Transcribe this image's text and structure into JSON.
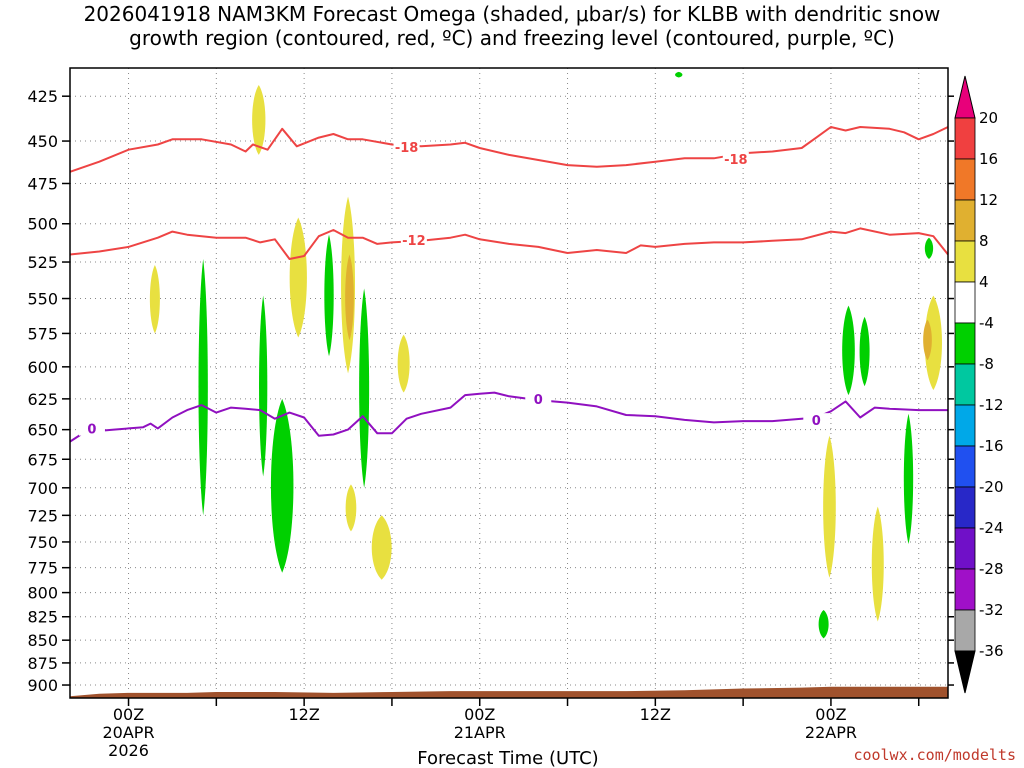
{
  "title": {
    "line1": "2026041918 NAM3KM Forecast Omega (shaded, μbar/s) for KLBB with dendritic snow",
    "line2": "growth region (contoured, red, ºC) and freezing level (contoured, purple, ºC)"
  },
  "credit": "coolwx.com/modelts",
  "chart_data": {
    "type": "heatmap",
    "xlabel": "Forecast Time (UTC)",
    "ylabel": "",
    "x_unit": "forecast hour",
    "xlim": [
      -4,
      56
    ],
    "y_unit": "mb",
    "ylim": [
      915,
      410
    ],
    "y_scale": "log",
    "grid": true,
    "x_ticks": [
      {
        "hour": 0,
        "lines": [
          "00Z",
          "20APR",
          "2026"
        ]
      },
      {
        "hour": 12,
        "lines": [
          "12Z"
        ]
      },
      {
        "hour": 24,
        "lines": [
          "00Z",
          "21APR"
        ]
      },
      {
        "hour": 36,
        "lines": [
          "12Z"
        ]
      },
      {
        "hour": 48,
        "lines": [
          "00Z",
          "22APR"
        ]
      }
    ],
    "y_ticks": [
      425,
      450,
      475,
      500,
      525,
      550,
      575,
      600,
      625,
      650,
      675,
      700,
      725,
      750,
      775,
      800,
      825,
      850,
      875,
      900
    ],
    "colorbar": {
      "label_values": [
        20,
        16,
        12,
        8,
        4,
        -4,
        -8,
        -12,
        -16,
        -20,
        -24,
        -28,
        -32,
        -36
      ],
      "colors": [
        "#e8007a",
        "#f04040",
        "#f07828",
        "#e0b030",
        "#e8e040",
        "#ffffff",
        "#00d000",
        "#00c8a0",
        "#00a8e8",
        "#2050f0",
        "#2828c8",
        "#7010c8",
        "#a010c8",
        "#a8a8a8",
        "#000000"
      ]
    },
    "contours": [
      {
        "value": "-18",
        "color": "#ee4444",
        "points": [
          [
            -4,
            468
          ],
          [
            -2,
            462
          ],
          [
            0,
            455
          ],
          [
            2,
            452
          ],
          [
            3,
            449
          ],
          [
            5,
            449
          ],
          [
            7,
            452
          ],
          [
            8,
            456
          ],
          [
            8.5,
            452
          ],
          [
            9.5,
            455
          ],
          [
            10.5,
            443
          ],
          [
            11.5,
            453
          ],
          [
            13,
            448
          ],
          [
            14,
            446
          ],
          [
            15,
            449
          ],
          [
            16,
            449
          ],
          [
            18,
            452
          ],
          [
            20,
            453
          ],
          [
            22,
            452
          ],
          [
            23,
            451
          ],
          [
            24,
            454
          ],
          [
            26,
            458
          ],
          [
            28,
            461
          ],
          [
            30,
            464
          ],
          [
            32,
            465
          ],
          [
            34,
            464
          ],
          [
            36,
            462
          ],
          [
            38,
            460
          ],
          [
            40,
            460
          ],
          [
            42,
            457
          ],
          [
            44,
            456
          ],
          [
            46,
            454
          ],
          [
            47,
            448
          ],
          [
            48,
            442
          ],
          [
            49,
            444
          ],
          [
            50,
            442
          ],
          [
            52,
            443
          ],
          [
            53,
            445
          ],
          [
            54,
            449
          ],
          [
            55,
            446
          ],
          [
            56,
            442
          ]
        ],
        "labels": [
          [
            19,
            454
          ],
          [
            41.5,
            461
          ]
        ]
      },
      {
        "value": "-12",
        "color": "#ee4444",
        "points": [
          [
            -4,
            520
          ],
          [
            -2,
            518
          ],
          [
            0,
            515
          ],
          [
            2,
            509
          ],
          [
            3,
            505
          ],
          [
            4,
            507
          ],
          [
            6,
            509
          ],
          [
            8,
            509
          ],
          [
            9,
            512
          ],
          [
            10,
            510
          ],
          [
            11,
            523
          ],
          [
            12,
            521
          ],
          [
            13,
            508
          ],
          [
            14,
            504
          ],
          [
            15,
            509
          ],
          [
            16,
            509
          ],
          [
            17,
            513
          ],
          [
            18,
            512
          ],
          [
            20,
            511
          ],
          [
            22,
            509
          ],
          [
            23,
            507
          ],
          [
            24,
            510
          ],
          [
            26,
            513
          ],
          [
            28,
            515
          ],
          [
            30,
            519
          ],
          [
            32,
            517
          ],
          [
            34,
            519
          ],
          [
            35,
            514
          ],
          [
            36,
            515
          ],
          [
            38,
            513
          ],
          [
            40,
            512
          ],
          [
            42,
            512
          ],
          [
            44,
            511
          ],
          [
            46,
            510
          ],
          [
            48,
            505
          ],
          [
            49,
            506
          ],
          [
            50,
            503
          ],
          [
            52,
            507
          ],
          [
            54,
            506
          ],
          [
            55,
            508
          ],
          [
            56,
            520
          ]
        ],
        "labels": [
          [
            19.5,
            511
          ]
        ]
      },
      {
        "value": "0",
        "color": "#9010c0",
        "points": [
          [
            -4,
            660
          ],
          [
            -3,
            652
          ],
          [
            -1,
            650
          ],
          [
            1,
            648
          ],
          [
            1.5,
            645
          ],
          [
            2,
            649
          ],
          [
            3,
            640
          ],
          [
            4,
            634
          ],
          [
            5,
            630
          ],
          [
            6,
            636
          ],
          [
            7,
            632
          ],
          [
            8,
            633
          ],
          [
            9,
            634
          ],
          [
            10,
            641
          ],
          [
            11,
            636
          ],
          [
            12,
            640
          ],
          [
            13,
            655
          ],
          [
            14,
            654
          ],
          [
            15,
            650
          ],
          [
            16,
            639
          ],
          [
            17,
            653
          ],
          [
            18,
            653
          ],
          [
            19,
            641
          ],
          [
            20,
            637
          ],
          [
            22,
            632
          ],
          [
            23,
            622
          ],
          [
            24,
            621
          ],
          [
            25,
            620
          ],
          [
            26,
            623
          ],
          [
            28,
            626
          ],
          [
            30,
            628
          ],
          [
            32,
            631
          ],
          [
            34,
            638
          ],
          [
            36,
            639
          ],
          [
            38,
            642
          ],
          [
            40,
            644
          ],
          [
            42,
            643
          ],
          [
            44,
            643
          ],
          [
            46,
            641
          ],
          [
            47,
            640
          ],
          [
            48,
            635
          ],
          [
            49,
            627
          ],
          [
            50,
            640
          ],
          [
            51,
            632
          ],
          [
            52,
            633
          ],
          [
            54,
            634
          ],
          [
            56,
            634
          ]
        ],
        "labels": [
          [
            -2.5,
            650
          ],
          [
            28,
            626
          ],
          [
            47,
            643
          ]
        ]
      }
    ],
    "shaded_regions": [
      {
        "level": 4,
        "color": "#e8e040",
        "x": 8.9,
        "w": 0.6,
        "y_top": 419,
        "y_bot": 458
      },
      {
        "level": 4,
        "color": "#e8e040",
        "x": 1.8,
        "w": 0.35,
        "y_top": 527,
        "y_bot": 575
      },
      {
        "level": 4,
        "color": "#e8e040",
        "x": 11.6,
        "w": 0.9,
        "y_top": 496,
        "y_bot": 578
      },
      {
        "level": 4,
        "color": "#e8e040",
        "x": 15,
        "w": 0.65,
        "y_top": 483,
        "y_bot": 605
      },
      {
        "level": 8,
        "color": "#e0b030",
        "x": 15.1,
        "w": 0.25,
        "y_top": 520,
        "y_bot": 580
      },
      {
        "level": 4,
        "color": "#e8e040",
        "x": 18.8,
        "w": 0.5,
        "y_top": 576,
        "y_bot": 620
      },
      {
        "level": 4,
        "color": "#e8e040",
        "x": 15.2,
        "w": 0.4,
        "y_top": 697,
        "y_bot": 740
      },
      {
        "level": 4,
        "color": "#e8e040",
        "x": 17.3,
        "w": 1.1,
        "y_top": 725,
        "y_bot": 787
      },
      {
        "level": 4,
        "color": "#e8e040",
        "x": 55,
        "w": 0.9,
        "y_top": 548,
        "y_bot": 618
      },
      {
        "level": 8,
        "color": "#e0b030",
        "x": 54.6,
        "w": 0.25,
        "y_top": 565,
        "y_bot": 595
      },
      {
        "level": 4,
        "color": "#e8e040",
        "x": 47.9,
        "w": 0.55,
        "y_top": 655,
        "y_bot": 785
      },
      {
        "level": 4,
        "color": "#e8e040",
        "x": 51.2,
        "w": 0.5,
        "y_top": 717,
        "y_bot": 830
      },
      {
        "level": -4,
        "color": "#00d000",
        "x": 5.1,
        "w": 0.3,
        "y_top": 523,
        "y_bot": 725
      },
      {
        "level": -4,
        "color": "#00d000",
        "x": 9.2,
        "w": 0.22,
        "y_top": 548,
        "y_bot": 690
      },
      {
        "level": -4,
        "color": "#00d000",
        "x": 13.7,
        "w": 0.3,
        "y_top": 507,
        "y_bot": 592
      },
      {
        "level": -4,
        "color": "#00d000",
        "x": 16.1,
        "w": 0.35,
        "y_top": 543,
        "y_bot": 700
      },
      {
        "level": -4,
        "color": "#00d000",
        "x": 10.5,
        "w": 1.3,
        "y_top": 625,
        "y_bot": 780
      },
      {
        "level": -4,
        "color": "#00d000",
        "x": 49.2,
        "w": 0.55,
        "y_top": 555,
        "y_bot": 622
      },
      {
        "level": -4,
        "color": "#00d000",
        "x": 50.3,
        "w": 0.35,
        "y_top": 563,
        "y_bot": 615
      },
      {
        "level": -4,
        "color": "#00d000",
        "x": 53.3,
        "w": 0.3,
        "y_top": 637,
        "y_bot": 752
      },
      {
        "level": -4,
        "color": "#00d000",
        "x": 47.5,
        "w": 0.35,
        "y_top": 818,
        "y_bot": 848
      },
      {
        "level": -4,
        "color": "#00d000",
        "x": 54.7,
        "w": 0.22,
        "y_top": 509,
        "y_bot": 523
      },
      {
        "level": -4,
        "color": "#00d000",
        "x": 37.6,
        "w": 0.15,
        "y_top": 412,
        "y_bot": 415
      }
    ],
    "terrain": {
      "color": "#a0522d",
      "top_points": [
        [
          -4,
          913
        ],
        [
          -2,
          910
        ],
        [
          0,
          909
        ],
        [
          2,
          909
        ],
        [
          4,
          909
        ],
        [
          6,
          908
        ],
        [
          10,
          908
        ],
        [
          14,
          909
        ],
        [
          18,
          908
        ],
        [
          22,
          907
        ],
        [
          26,
          907
        ],
        [
          30,
          907
        ],
        [
          34,
          907
        ],
        [
          38,
          906
        ],
        [
          42,
          904
        ],
        [
          46,
          903
        ],
        [
          48,
          902
        ],
        [
          52,
          902
        ],
        [
          56,
          902
        ]
      ]
    }
  }
}
